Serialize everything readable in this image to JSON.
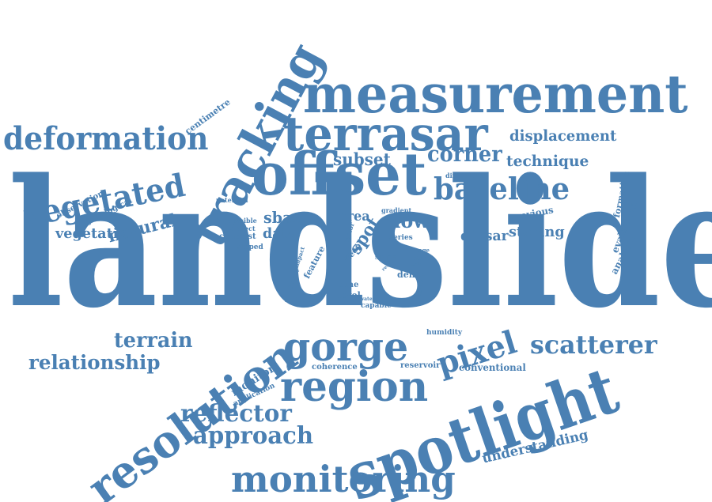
{
  "colors": {
    "word": "#4a80b3",
    "background": "#ffffff"
  },
  "words": [
    "landslide",
    "spotlight",
    "offset",
    "measurement",
    "terrasar",
    "tracking",
    "resolution",
    "region",
    "gorge",
    "monitoring",
    "deformation",
    "vegetated",
    "baseline",
    "pixel",
    "scatterer",
    "reflector",
    "approach",
    "relationship",
    "terrain",
    "displacement",
    "technique",
    "corner",
    "subset",
    "natural",
    "vegetation",
    "data",
    "sbas",
    "slow",
    "spot",
    "dinsar",
    "staring",
    "area",
    "understanding",
    "conventional",
    "previous",
    "formation",
    "evaluation",
    "analysis",
    "monitor",
    "application",
    "coherence",
    "reservoir",
    "humidity",
    "centimetre",
    "observation",
    "hydrological",
    "potential",
    "possible",
    "project",
    "contrast",
    "sloped",
    "gradient",
    "series",
    "factor",
    "difficulties",
    "impact",
    "density",
    "feature",
    "steep",
    "case",
    "result",
    "slope",
    "image",
    "study",
    "order",
    "dense",
    "time",
    "level",
    "reliable",
    "cover",
    "water",
    "capable",
    "rainfall"
  ]
}
